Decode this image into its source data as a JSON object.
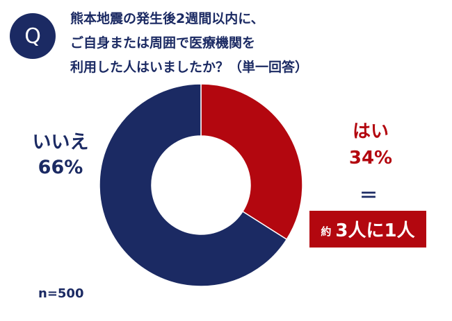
{
  "question": {
    "badge": "Q",
    "lines": [
      "熊本地震の発生後2週間以内に、",
      "ご自身または周囲で医療機関を",
      "利用した人はいましたか？（単一回答）"
    ]
  },
  "chart_data": {
    "type": "pie",
    "variant": "donut",
    "categories": [
      "はい",
      "いいえ"
    ],
    "values": [
      34,
      66
    ],
    "labels": [
      "34%",
      "66%"
    ],
    "colors": [
      "#b3070f",
      "#1b2a63"
    ],
    "title": "",
    "legend": "none"
  },
  "annotation": {
    "equals": "＝",
    "prefix": "約",
    "text": "3人に1人"
  },
  "sample_size": "n=500"
}
